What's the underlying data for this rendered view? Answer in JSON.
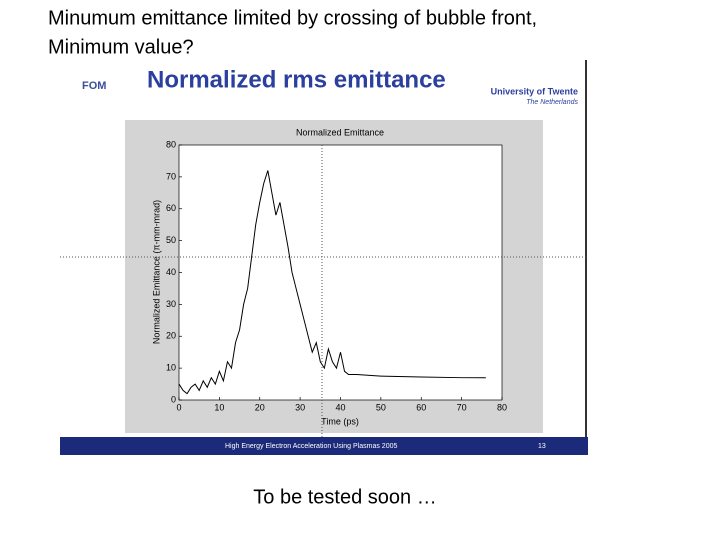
{
  "heading": [
    "Minumum emittance limited by crossing of bubble front,",
    "Minimum value?"
  ],
  "slide": {
    "logo_left": "FOM",
    "title": "Normalized rms emittance",
    "logo_right": [
      "University of Twente",
      "The Netherlands"
    ],
    "footer": "High Energy Electron Acceleration Using Plasmas  2005",
    "page": "13"
  },
  "chart_data": {
    "type": "line",
    "title": "Normalized Emittance",
    "xlabel": "Time (ps)",
    "ylabel": "Normalized Emittance (π-mm-mrad)",
    "xlim": [
      0,
      80
    ],
    "ylim": [
      0,
      80
    ],
    "xticks": [
      0,
      10,
      20,
      30,
      40,
      50,
      60,
      70,
      80
    ],
    "yticks": [
      0,
      10,
      20,
      30,
      40,
      50,
      60,
      70,
      80
    ],
    "series": [
      {
        "name": "emittance",
        "color": "#000000",
        "x": [
          0,
          1,
          2,
          3,
          4,
          5,
          6,
          7,
          8,
          9,
          10,
          11,
          12,
          13,
          14,
          15,
          16,
          17,
          18,
          19,
          20,
          21,
          22,
          23,
          24,
          25,
          26,
          27,
          28,
          29,
          30,
          31,
          32,
          33,
          34,
          35,
          36,
          37,
          38,
          39,
          40,
          41,
          42,
          44,
          50,
          60,
          70,
          76
        ],
        "values": [
          5,
          3,
          2,
          4,
          5,
          3,
          6,
          4,
          7,
          5,
          9,
          6,
          12,
          10,
          18,
          22,
          30,
          35,
          45,
          55,
          62,
          68,
          72,
          65,
          58,
          62,
          55,
          48,
          40,
          35,
          30,
          25,
          20,
          15,
          18,
          12,
          10,
          16,
          12,
          10,
          15,
          9,
          8,
          8,
          7.5,
          7.2,
          7,
          7
        ]
      }
    ]
  },
  "caption": "To be tested soon …"
}
